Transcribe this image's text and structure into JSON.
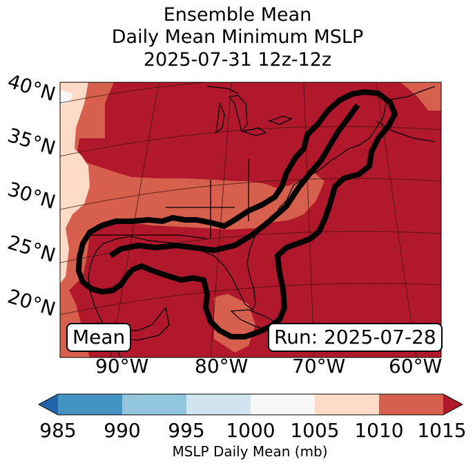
{
  "title": {
    "line1": "Ensemble Mean",
    "line2": "Daily Mean Minimum MSLP",
    "line3": "2025-07-31 12z-12z"
  },
  "lat_labels": [
    "40°N",
    "35°N",
    "30°N",
    "25°N",
    "20°N"
  ],
  "lon_labels": [
    "90°W",
    "80°W",
    "70°W",
    "60°W"
  ],
  "left_box": "Mean",
  "right_box": "Run: 2025-07-28",
  "colorbar": {
    "ticks": [
      "985",
      "990",
      "995",
      "1000",
      "1005",
      "1010",
      "1015"
    ],
    "label": "MSLP Daily Mean (mb)",
    "colors": [
      "#2166ac",
      "#4393c3",
      "#92c5de",
      "#d1e5f0",
      "#f7f7f7",
      "#fddbc7",
      "#d6604d",
      "#b2182b"
    ]
  }
}
